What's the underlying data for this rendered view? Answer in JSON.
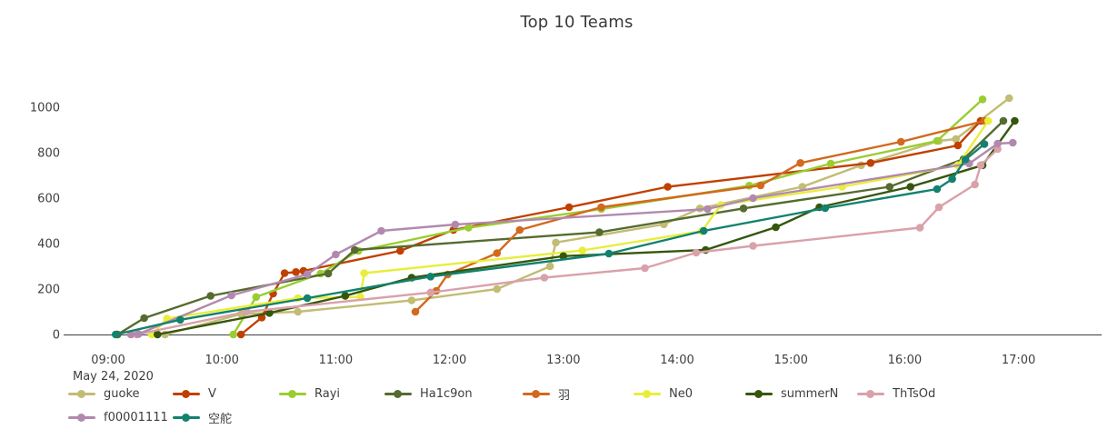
{
  "chart_data": {
    "type": "line",
    "title": "Top 10 Teams",
    "x_date_label": "May 24, 2020",
    "x_ticks": [
      "09:00",
      "10:00",
      "11:00",
      "12:00",
      "13:00",
      "14:00",
      "15:00",
      "16:00",
      "17:00"
    ],
    "y_ticks": [
      0,
      200,
      400,
      600,
      800,
      1000
    ],
    "ylim": [
      0,
      1100
    ],
    "x_range": [
      "09:00",
      "17:00"
    ],
    "grid": false,
    "legend_position": "bottom-left",
    "series": [
      {
        "name": "guoke",
        "color": "#c2bc75",
        "points": [
          [
            "09:30",
            0
          ],
          [
            "10:10",
            90
          ],
          [
            "10:40",
            100
          ],
          [
            "11:40",
            150
          ],
          [
            "12:25",
            200
          ],
          [
            "12:53",
            300
          ],
          [
            "12:56",
            405
          ],
          [
            "13:53",
            485
          ],
          [
            "14:12",
            555
          ],
          [
            "15:06",
            650
          ],
          [
            "15:37",
            745
          ],
          [
            "16:18",
            852
          ],
          [
            "16:27",
            860
          ],
          [
            "16:55",
            1040
          ]
        ]
      },
      {
        "name": "V",
        "color": "#c04000",
        "points": [
          [
            "10:10",
            0
          ],
          [
            "10:21",
            75
          ],
          [
            "10:27",
            180
          ],
          [
            "10:33",
            270
          ],
          [
            "10:39",
            275
          ],
          [
            "10:43",
            280
          ],
          [
            "11:34",
            368
          ],
          [
            "12:02",
            460
          ],
          [
            "13:03",
            560
          ],
          [
            "13:55",
            650
          ],
          [
            "15:42",
            755
          ],
          [
            "16:28",
            832
          ],
          [
            "16:40",
            940
          ]
        ]
      },
      {
        "name": "Rayi",
        "color": "#9acd32",
        "points": [
          [
            "10:06",
            0
          ],
          [
            "10:18",
            165
          ],
          [
            "10:52",
            268
          ],
          [
            "11:12",
            368
          ],
          [
            "12:10",
            470
          ],
          [
            "13:20",
            552
          ],
          [
            "14:38",
            655
          ],
          [
            "15:21",
            752
          ],
          [
            "16:17",
            852
          ],
          [
            "16:41",
            1035
          ]
        ]
      },
      {
        "name": "Ha1c9on",
        "color": "#556b2f",
        "points": [
          [
            "09:05",
            0
          ],
          [
            "09:19",
            72
          ],
          [
            "09:54",
            170
          ],
          [
            "10:56",
            268
          ],
          [
            "11:10",
            372
          ],
          [
            "13:19",
            450
          ],
          [
            "14:35",
            555
          ],
          [
            "15:52",
            650
          ],
          [
            "16:31",
            772
          ],
          [
            "16:52",
            940
          ]
        ]
      },
      {
        "name": "羽",
        "color": "#d2691e",
        "points": [
          [
            "11:42",
            100
          ],
          [
            "11:53",
            192
          ],
          [
            "11:59",
            264
          ],
          [
            "12:25",
            358
          ],
          [
            "12:37",
            460
          ],
          [
            "13:20",
            560
          ],
          [
            "14:44",
            656
          ],
          [
            "15:05",
            755
          ],
          [
            "15:58",
            848
          ],
          [
            "16:42",
            940
          ]
        ]
      },
      {
        "name": "Ne0",
        "color": "#e8ee3a",
        "points": [
          [
            "09:23",
            0
          ],
          [
            "09:31",
            70
          ],
          [
            "10:40",
            160
          ],
          [
            "11:13",
            165
          ],
          [
            "11:15",
            270
          ],
          [
            "13:10",
            370
          ],
          [
            "14:13",
            455
          ],
          [
            "14:23",
            570
          ],
          [
            "15:27",
            650
          ],
          [
            "16:28",
            745
          ],
          [
            "16:44",
            940
          ]
        ]
      },
      {
        "name": "summerN",
        "color": "#36560d",
        "points": [
          [
            "09:26",
            0
          ],
          [
            "10:25",
            95
          ],
          [
            "11:05",
            170
          ],
          [
            "11:40",
            250
          ],
          [
            "13:00",
            345
          ],
          [
            "14:15",
            372
          ],
          [
            "14:52",
            472
          ],
          [
            "15:15",
            560
          ],
          [
            "16:03",
            650
          ],
          [
            "16:41",
            745
          ],
          [
            "16:58",
            940
          ]
        ]
      },
      {
        "name": "ThTsOd",
        "color": "#d9a1aa",
        "points": [
          [
            "09:15",
            0
          ],
          [
            "10:13",
            100
          ],
          [
            "11:50",
            185
          ],
          [
            "12:50",
            250
          ],
          [
            "13:43",
            292
          ],
          [
            "14:10",
            360
          ],
          [
            "14:40",
            390
          ],
          [
            "16:08",
            470
          ],
          [
            "16:18",
            560
          ],
          [
            "16:37",
            660
          ],
          [
            "16:40",
            745
          ],
          [
            "16:49",
            816
          ]
        ]
      },
      {
        "name": "f00001111",
        "color": "#b289ae",
        "points": [
          [
            "09:12",
            0
          ],
          [
            "09:16",
            2
          ],
          [
            "10:05",
            172
          ],
          [
            "10:45",
            265
          ],
          [
            "11:00",
            352
          ],
          [
            "11:24",
            456
          ],
          [
            "12:03",
            484
          ],
          [
            "14:16",
            552
          ],
          [
            "14:40",
            600
          ],
          [
            "16:34",
            752
          ],
          [
            "16:49",
            840
          ],
          [
            "16:57",
            844
          ]
        ]
      },
      {
        "name": "空舵",
        "color": "#12826e",
        "points": [
          [
            "09:04",
            0
          ],
          [
            "09:38",
            65
          ],
          [
            "10:45",
            160
          ],
          [
            "11:50",
            255
          ],
          [
            "13:24",
            356
          ],
          [
            "14:14",
            456
          ],
          [
            "15:18",
            556
          ],
          [
            "16:17",
            640
          ],
          [
            "16:25",
            684
          ],
          [
            "16:32",
            770
          ],
          [
            "16:42",
            838
          ]
        ]
      }
    ]
  }
}
